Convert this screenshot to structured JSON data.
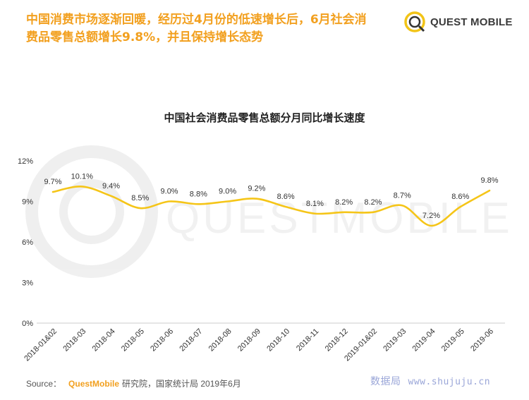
{
  "headline": {
    "line1": "中国消费市场逐渐回暖，经历过4月份的低速增长后，6月社会消",
    "line2": "费品零售总额增长9.8%，并且保持增长态势"
  },
  "brand": {
    "name": "QUEST MOBILE",
    "watermark": "QUESTMOBILE"
  },
  "source": {
    "prefix": "Source：",
    "org": "QuestMobile",
    "rest": "研究院，国家统计局 2019年6月"
  },
  "site_watermark": {
    "name": "数据局",
    "url": "www.shujuju.cn"
  },
  "colors": {
    "accent": "#f2a01f",
    "line": "#f5c518"
  },
  "chart_data": {
    "type": "line",
    "title": "中国社会消费品零售总额分月同比增长速度",
    "xlabel": "",
    "ylabel": "",
    "categories": [
      "2018-01&02",
      "2018-03",
      "2018-04",
      "2018-05",
      "2018-06",
      "2018-07",
      "2018-08",
      "2018-09",
      "2018-10",
      "2018-11",
      "2018-12",
      "2019-01&02",
      "2019-03",
      "2019-04",
      "2019-05",
      "2019-06"
    ],
    "values": [
      9.7,
      10.1,
      9.4,
      8.5,
      9.0,
      8.8,
      9.0,
      9.2,
      8.6,
      8.1,
      8.2,
      8.2,
      8.7,
      7.2,
      8.6,
      9.8
    ],
    "data_labels": [
      "9.7%",
      "10.1%",
      "9.4%",
      "8.5%",
      "9.0%",
      "8.8%",
      "9.0%",
      "9.2%",
      "8.6%",
      "8.1%",
      "8.2%",
      "8.2%",
      "8.7%",
      "7.2%",
      "8.6%",
      "9.8%"
    ],
    "ylim": [
      0,
      12
    ],
    "yticks": [
      0,
      3,
      6,
      9,
      12
    ],
    "ytick_labels": [
      "0%",
      "3%",
      "6%",
      "9%",
      "12%"
    ],
    "grid": false,
    "legend": "none"
  }
}
